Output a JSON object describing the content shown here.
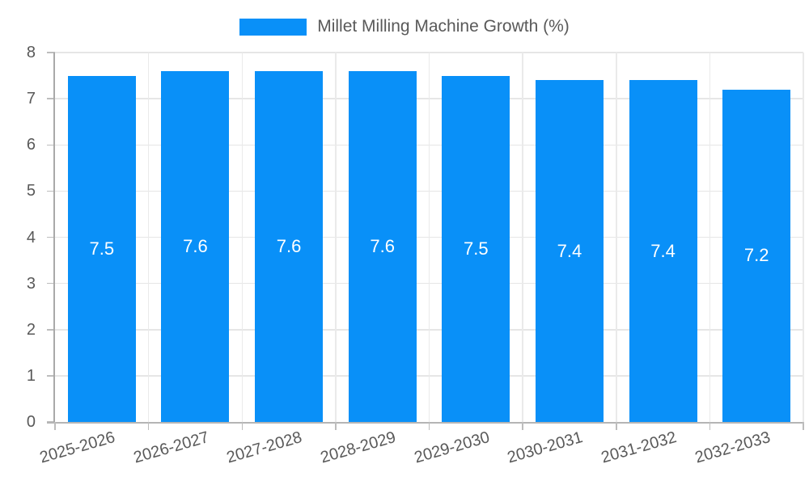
{
  "legend": {
    "label": "Millet Milling Machine Growth (%)"
  },
  "chart_data": {
    "type": "bar",
    "title": "Millet Milling Machine Growth (%)",
    "categories": [
      "2025-2026",
      "2026-2027",
      "2027-2028",
      "2028-2029",
      "2029-2030",
      "2030-2031",
      "2031-2032",
      "2032-2033"
    ],
    "values": [
      7.5,
      7.6,
      7.6,
      7.6,
      7.5,
      7.4,
      7.4,
      7.2
    ],
    "data_labels": [
      "7.5",
      "7.6",
      "7.6",
      "7.6",
      "7.5",
      "7.4",
      "7.4",
      "7.2"
    ],
    "xlabel": "",
    "ylabel": "",
    "ylim": [
      0,
      8
    ],
    "y_ticks": [
      0,
      1,
      2,
      3,
      4,
      5,
      6,
      7,
      8
    ],
    "grid": true,
    "legend_position": "top-center",
    "x_label_rotation_deg": -16,
    "colors": {
      "bar": "#0990f8",
      "bar_label": "#ffffff",
      "axis_text": "#595959",
      "axis_line_y": "#a9a9a9",
      "axis_line_x": "#b5b5b5",
      "gridline": "#e6e6e6",
      "tick": "#bdbdbd",
      "background": "#ffffff"
    }
  }
}
